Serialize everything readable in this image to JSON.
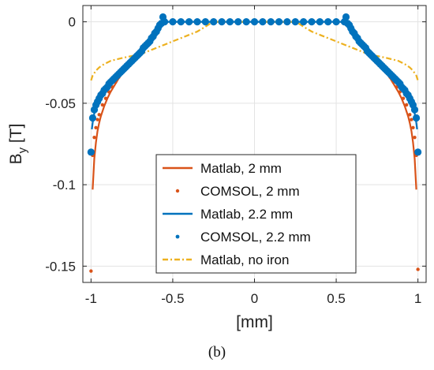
{
  "caption": "(b)",
  "chart_data": {
    "type": "line",
    "xlabel": "[mm]",
    "ylabel": "B",
    "ylabel_subscript": "y",
    "ylabel_unit": "[T]",
    "xlim": [
      -1.05,
      1.05
    ],
    "ylim": [
      -0.16,
      0.01
    ],
    "xticks": [
      -1,
      -0.5,
      0,
      0.5,
      1
    ],
    "xtick_labels": [
      "-1",
      "-0.5",
      "0",
      "0.5",
      "1"
    ],
    "yticks": [
      0,
      -0.05,
      -0.1,
      -0.15
    ],
    "ytick_labels": [
      "0",
      "-0.05",
      "-0.1",
      "-0.15"
    ],
    "grid": true,
    "legend_position": "bottom-center",
    "series": [
      {
        "name": "Matlab, 2 mm",
        "style": "solid-line",
        "color": "#D95319",
        "x": [
          -0.99,
          -0.98,
          -0.97,
          -0.96,
          -0.95,
          -0.94,
          -0.92,
          -0.9,
          -0.88,
          -0.85,
          -0.82,
          -0.78,
          -0.74,
          -0.7,
          -0.66,
          -0.62,
          -0.59,
          -0.57,
          -0.56,
          0.56,
          0.57,
          0.59,
          0.62,
          0.66,
          0.7,
          0.74,
          0.78,
          0.82,
          0.85,
          0.88,
          0.9,
          0.92,
          0.94,
          0.95,
          0.96,
          0.97,
          0.98,
          0.99
        ],
        "y": [
          -0.103,
          -0.084,
          -0.074,
          -0.067,
          -0.062,
          -0.058,
          -0.052,
          -0.047,
          -0.043,
          -0.038,
          -0.033,
          -0.028,
          -0.023,
          -0.018,
          -0.013,
          -0.008,
          -0.004,
          -0.001,
          0,
          0,
          -0.001,
          -0.004,
          -0.008,
          -0.013,
          -0.018,
          -0.023,
          -0.028,
          -0.033,
          -0.038,
          -0.043,
          -0.047,
          -0.052,
          -0.058,
          -0.062,
          -0.067,
          -0.074,
          -0.084,
          -0.103
        ]
      },
      {
        "name": "COMSOL, 2 mm",
        "style": "dots",
        "color": "#D95319",
        "x": [
          -1.0,
          -0.99,
          -0.98,
          -0.97,
          -0.96,
          -0.95,
          -0.93,
          -0.91,
          -0.89,
          -0.87,
          -0.85,
          -0.83,
          -0.81,
          -0.79,
          -0.77,
          -0.75,
          -0.73,
          -0.71,
          -0.69,
          -0.67,
          -0.65,
          -0.63,
          -0.61,
          -0.59,
          -0.57,
          0.57,
          0.59,
          0.61,
          0.63,
          0.65,
          0.67,
          0.69,
          0.71,
          0.73,
          0.75,
          0.77,
          0.79,
          0.81,
          0.83,
          0.85,
          0.87,
          0.89,
          0.91,
          0.93,
          0.95,
          0.96,
          0.97,
          0.98,
          0.99,
          1.0
        ],
        "y": [
          -0.153,
          -0.082,
          -0.071,
          -0.065,
          -0.06,
          -0.057,
          -0.051,
          -0.047,
          -0.043,
          -0.04,
          -0.037,
          -0.034,
          -0.031,
          -0.029,
          -0.027,
          -0.025,
          -0.023,
          -0.021,
          -0.018,
          -0.016,
          -0.013,
          -0.01,
          -0.006,
          -0.003,
          0.003,
          0.003,
          -0.003,
          -0.006,
          -0.01,
          -0.013,
          -0.016,
          -0.018,
          -0.021,
          -0.023,
          -0.025,
          -0.027,
          -0.029,
          -0.031,
          -0.034,
          -0.037,
          -0.04,
          -0.043,
          -0.047,
          -0.051,
          -0.057,
          -0.06,
          -0.065,
          -0.071,
          -0.082,
          -0.152
        ]
      },
      {
        "name": "Matlab, 2.2 mm",
        "style": "solid-line",
        "color": "#0072BD",
        "x": [
          -0.995,
          -0.985,
          -0.97,
          -0.955,
          -0.94,
          -0.92,
          -0.9,
          -0.87,
          -0.84,
          -0.8,
          -0.76,
          -0.72,
          -0.68,
          -0.64,
          -0.61,
          -0.58,
          -0.56,
          -0.55,
          0.55,
          0.56,
          0.58,
          0.61,
          0.64,
          0.68,
          0.72,
          0.76,
          0.8,
          0.84,
          0.87,
          0.9,
          0.92,
          0.94,
          0.955,
          0.97,
          0.985,
          0.995
        ],
        "y": [
          -0.066,
          -0.058,
          -0.053,
          -0.049,
          -0.046,
          -0.043,
          -0.04,
          -0.036,
          -0.032,
          -0.028,
          -0.024,
          -0.02,
          -0.016,
          -0.011,
          -0.007,
          -0.003,
          -0.001,
          0,
          0,
          -0.001,
          -0.003,
          -0.007,
          -0.011,
          -0.016,
          -0.02,
          -0.024,
          -0.028,
          -0.032,
          -0.036,
          -0.04,
          -0.043,
          -0.046,
          -0.049,
          -0.053,
          -0.058,
          -0.066
        ]
      },
      {
        "name": "COMSOL, 2.2 mm",
        "style": "dots",
        "color": "#0072BD",
        "x": [
          -1.0,
          -0.99,
          -0.98,
          -0.97,
          -0.96,
          -0.95,
          -0.94,
          -0.93,
          -0.92,
          -0.91,
          -0.9,
          -0.89,
          -0.88,
          -0.87,
          -0.86,
          -0.85,
          -0.84,
          -0.83,
          -0.82,
          -0.81,
          -0.8,
          -0.79,
          -0.78,
          -0.77,
          -0.76,
          -0.75,
          -0.74,
          -0.73,
          -0.72,
          -0.71,
          -0.7,
          -0.69,
          -0.68,
          -0.67,
          -0.66,
          -0.65,
          -0.64,
          -0.63,
          -0.62,
          -0.61,
          -0.6,
          -0.59,
          -0.58,
          -0.57,
          -0.56,
          -0.55,
          -0.5,
          -0.45,
          -0.4,
          -0.35,
          -0.3,
          -0.25,
          -0.2,
          -0.15,
          -0.1,
          -0.05,
          0,
          0.05,
          0.1,
          0.15,
          0.2,
          0.25,
          0.3,
          0.35,
          0.4,
          0.45,
          0.5,
          0.55,
          0.56,
          0.57,
          0.58,
          0.59,
          0.6,
          0.61,
          0.62,
          0.63,
          0.64,
          0.65,
          0.66,
          0.67,
          0.68,
          0.69,
          0.7,
          0.71,
          0.72,
          0.73,
          0.74,
          0.75,
          0.76,
          0.77,
          0.78,
          0.79,
          0.8,
          0.81,
          0.82,
          0.83,
          0.84,
          0.85,
          0.86,
          0.87,
          0.88,
          0.89,
          0.9,
          0.91,
          0.92,
          0.93,
          0.94,
          0.95,
          0.96,
          0.97,
          0.98,
          0.99,
          1.0
        ],
        "y": [
          -0.08,
          -0.059,
          -0.054,
          -0.051,
          -0.049,
          -0.047,
          -0.045,
          -0.044,
          -0.042,
          -0.041,
          -0.04,
          -0.038,
          -0.037,
          -0.036,
          -0.035,
          -0.034,
          -0.033,
          -0.032,
          -0.031,
          -0.03,
          -0.029,
          -0.028,
          -0.027,
          -0.026,
          -0.025,
          -0.024,
          -0.023,
          -0.022,
          -0.021,
          -0.02,
          -0.019,
          -0.018,
          -0.016,
          -0.015,
          -0.014,
          -0.013,
          -0.012,
          -0.01,
          -0.009,
          -0.007,
          -0.006,
          -0.004,
          -0.002,
          -0.001,
          0.003,
          0,
          0,
          0,
          0,
          0,
          0,
          0,
          0,
          0,
          0,
          0,
          0,
          0,
          0,
          0,
          0,
          0,
          0,
          0,
          0,
          0,
          0,
          0,
          0.003,
          -0.001,
          -0.002,
          -0.004,
          -0.006,
          -0.007,
          -0.009,
          -0.01,
          -0.012,
          -0.013,
          -0.014,
          -0.015,
          -0.016,
          -0.018,
          -0.019,
          -0.02,
          -0.021,
          -0.022,
          -0.023,
          -0.024,
          -0.025,
          -0.026,
          -0.027,
          -0.028,
          -0.029,
          -0.03,
          -0.031,
          -0.032,
          -0.033,
          -0.034,
          -0.035,
          -0.036,
          -0.037,
          -0.038,
          -0.04,
          -0.041,
          -0.042,
          -0.044,
          -0.045,
          -0.047,
          -0.049,
          -0.051,
          -0.054,
          -0.059,
          -0.08
        ]
      },
      {
        "name": "Matlab, no iron",
        "style": "dash-dot",
        "color": "#EDB120",
        "x": [
          -1.0,
          -0.99,
          -0.97,
          -0.95,
          -0.92,
          -0.88,
          -0.84,
          -0.8,
          -0.75,
          -0.7,
          -0.65,
          -0.6,
          -0.55,
          -0.5,
          -0.45,
          -0.4,
          -0.35,
          -0.3,
          -0.27,
          -0.25,
          0.25,
          0.27,
          0.3,
          0.35,
          0.4,
          0.45,
          0.5,
          0.55,
          0.6,
          0.65,
          0.7,
          0.75,
          0.8,
          0.84,
          0.88,
          0.92,
          0.95,
          0.97,
          0.99,
          1.0
        ],
        "y": [
          -0.036,
          -0.033,
          -0.03,
          -0.028,
          -0.026,
          -0.024,
          -0.023,
          -0.022,
          -0.021,
          -0.02,
          -0.018,
          -0.016,
          -0.014,
          -0.012,
          -0.01,
          -0.008,
          -0.006,
          -0.003,
          -0.001,
          0,
          0,
          -0.001,
          -0.003,
          -0.006,
          -0.008,
          -0.01,
          -0.012,
          -0.014,
          -0.016,
          -0.018,
          -0.02,
          -0.021,
          -0.022,
          -0.023,
          -0.024,
          -0.026,
          -0.028,
          -0.03,
          -0.033,
          -0.036
        ]
      }
    ]
  }
}
